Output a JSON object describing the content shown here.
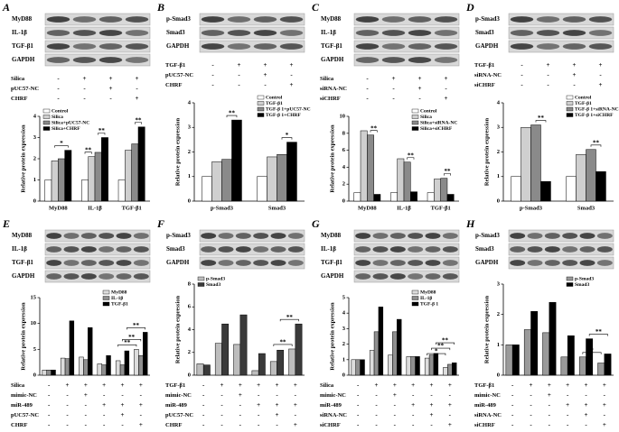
{
  "chart_data": [
    {
      "type": "bar",
      "panel": "A",
      "blot_labels": [
        "MyD88",
        "IL-1β",
        "TGF-β1",
        "GAPDH"
      ],
      "treatments": [
        {
          "name": "Silica",
          "marks": [
            "-",
            "+",
            "+",
            "+"
          ]
        },
        {
          "name": "pUC57-NC",
          "marks": [
            "-",
            "-",
            "+",
            "-"
          ]
        },
        {
          "name": "CHRF",
          "marks": [
            "-",
            "-",
            "-",
            "+"
          ]
        }
      ],
      "ylabel": "Relative protein expression",
      "categories": [
        "MyD88",
        "IL-1β",
        "TGF-β1"
      ],
      "series": [
        {
          "name": "Control",
          "color": "#ffffff",
          "values": [
            1,
            1,
            1
          ]
        },
        {
          "name": "Silica",
          "color": "#cfcfcf",
          "values": [
            1.9,
            2.1,
            2.4
          ]
        },
        {
          "name": "Silica+pUC57-NC",
          "color": "#8a8a8a",
          "values": [
            2.0,
            2.3,
            2.7
          ]
        },
        {
          "name": "Silica+CHRF",
          "color": "#000000",
          "values": [
            2.4,
            3.0,
            3.5
          ]
        }
      ],
      "ylim": [
        0,
        4
      ],
      "yticks": [
        0,
        1,
        2,
        3,
        4
      ],
      "legend": "upper left",
      "annotations": [
        {
          "text": "*",
          "a": [
            0,
            1
          ],
          "b": [
            0,
            3
          ]
        },
        {
          "text": "**",
          "a": [
            1,
            0
          ],
          "b": [
            1,
            1
          ]
        },
        {
          "text": "**",
          "a": [
            1,
            2
          ],
          "b": [
            1,
            3
          ]
        },
        {
          "text": "**",
          "a": [
            2,
            2
          ],
          "b": [
            2,
            3
          ]
        }
      ]
    },
    {
      "type": "bar",
      "panel": "B",
      "blot_labels": [
        "p-Smad3",
        "Smad3",
        "GAPDH"
      ],
      "treatments": [
        {
          "name": "TGF-β1",
          "marks": [
            "-",
            "+",
            "+",
            "+"
          ]
        },
        {
          "name": "pUC57-NC",
          "marks": [
            "-",
            "-",
            "+",
            "-"
          ]
        },
        {
          "name": "CHRF",
          "marks": [
            "-",
            "-",
            "-",
            "+"
          ]
        }
      ],
      "ylabel": "Relative protein expression",
      "categories": [
        "p-Smad3",
        "Smad3"
      ],
      "series": [
        {
          "name": "Control",
          "color": "#ffffff",
          "values": [
            1,
            1
          ]
        },
        {
          "name": "TGF-β1",
          "color": "#cfcfcf",
          "values": [
            1.6,
            1.8
          ]
        },
        {
          "name": "TGF-β 1+pUC57-NC",
          "color": "#8a8a8a",
          "values": [
            1.7,
            1.9
          ]
        },
        {
          "name": "TGF-β 1+CHRF",
          "color": "#000000",
          "values": [
            3.3,
            2.4
          ]
        }
      ],
      "ylim": [
        0,
        4
      ],
      "yticks": [
        0,
        1,
        2,
        3,
        4
      ],
      "legend": "upper right",
      "annotations": [
        {
          "text": "**",
          "a": [
            0,
            2
          ],
          "b": [
            0,
            3
          ]
        },
        {
          "text": "*",
          "a": [
            1,
            2
          ],
          "b": [
            1,
            3
          ]
        }
      ]
    },
    {
      "type": "bar",
      "panel": "C",
      "blot_labels": [
        "MyD88",
        "IL-1β",
        "TGF-β1",
        "GAPDH"
      ],
      "treatments": [
        {
          "name": "Silica",
          "marks": [
            "-",
            "+",
            "+",
            "+"
          ]
        },
        {
          "name": "siRNA-NC",
          "marks": [
            "-",
            "-",
            "+",
            "-"
          ]
        },
        {
          "name": "siCHRF",
          "marks": [
            "-",
            "-",
            "-",
            "+"
          ]
        }
      ],
      "ylabel": "Relative protein expression",
      "categories": [
        "MyD88",
        "IL-1β",
        "TGF-β1"
      ],
      "series": [
        {
          "name": "Control",
          "color": "#ffffff",
          "values": [
            1,
            1,
            1
          ]
        },
        {
          "name": "Silica",
          "color": "#cfcfcf",
          "values": [
            8.3,
            5.0,
            2.6
          ]
        },
        {
          "name": "Silica+siRNA-NC",
          "color": "#8a8a8a",
          "values": [
            7.8,
            4.6,
            2.7
          ]
        },
        {
          "name": "Silica+siCHRF",
          "color": "#000000",
          "values": [
            0.8,
            1.1,
            0.8
          ]
        }
      ],
      "ylim": [
        0,
        10
      ],
      "yticks": [
        0,
        2,
        4,
        6,
        8,
        10
      ],
      "legend": "upper right",
      "annotations": [
        {
          "text": "**",
          "a": [
            0,
            2
          ],
          "b": [
            0,
            3
          ]
        },
        {
          "text": "**",
          "a": [
            1,
            2
          ],
          "b": [
            1,
            3
          ]
        },
        {
          "text": "**",
          "a": [
            2,
            2
          ],
          "b": [
            2,
            3
          ]
        }
      ]
    },
    {
      "type": "bar",
      "panel": "D",
      "blot_labels": [
        "p-Smad3",
        "Smad3",
        "GAPDH"
      ],
      "treatments": [
        {
          "name": "TGF-β1",
          "marks": [
            "-",
            "+",
            "+",
            "+"
          ]
        },
        {
          "name": "siRNA-NC",
          "marks": [
            "-",
            "-",
            "+",
            "-"
          ]
        },
        {
          "name": "siCHRF",
          "marks": [
            "-",
            "-",
            "-",
            "+"
          ]
        }
      ],
      "ylabel": "Relative protein expression",
      "categories": [
        "p-Smad3",
        "Smad3"
      ],
      "series": [
        {
          "name": "Control",
          "color": "#ffffff",
          "values": [
            1,
            1
          ]
        },
        {
          "name": "TGF-β1",
          "color": "#cfcfcf",
          "values": [
            3.0,
            1.9
          ]
        },
        {
          "name": "TGF-β 1+siRNA-NC",
          "color": "#8a8a8a",
          "values": [
            3.1,
            2.1
          ]
        },
        {
          "name": "TGF-β 1+siCHRF",
          "color": "#000000",
          "values": [
            0.8,
            1.2
          ]
        }
      ],
      "ylim": [
        0,
        4
      ],
      "yticks": [
        0,
        1,
        2,
        3,
        4
      ],
      "legend": "upper right",
      "annotations": [
        {
          "text": "**",
          "a": [
            0,
            2
          ],
          "b": [
            0,
            3
          ]
        },
        {
          "text": "**",
          "a": [
            1,
            2
          ],
          "b": [
            1,
            3
          ]
        }
      ]
    },
    {
      "type": "bar",
      "panel": "E",
      "blot_labels": [
        "MyD88",
        "IL-1β",
        "TGF-β1",
        "GAPDH"
      ],
      "treatments": [
        {
          "name": "Silica",
          "marks": [
            "-",
            "+",
            "+",
            "+",
            "+",
            "+"
          ]
        },
        {
          "name": "mimic-NC",
          "marks": [
            "-",
            "-",
            "+",
            "-",
            "-",
            "-"
          ]
        },
        {
          "name": "miR-489",
          "marks": [
            "-",
            "-",
            "-",
            "+",
            "+",
            "+"
          ]
        },
        {
          "name": "pUC57-NC",
          "marks": [
            "-",
            "-",
            "-",
            "-",
            "+",
            "-"
          ]
        },
        {
          "name": "CHRF",
          "marks": [
            "-",
            "-",
            "-",
            "-",
            "-",
            "+"
          ]
        }
      ],
      "ylabel": "Relative protein expression",
      "categories": [
        null,
        null,
        null,
        null,
        null,
        null
      ],
      "series": [
        {
          "name": "MyD88",
          "color": "#dddddd",
          "values": [
            1,
            3.3,
            3.5,
            2.2,
            2.8,
            5.0
          ]
        },
        {
          "name": "IL-1β",
          "color": "#8f8f8f",
          "values": [
            1,
            3.2,
            3.0,
            2.0,
            2.0,
            3.8
          ]
        },
        {
          "name": "TGF-β1",
          "color": "#000000",
          "values": [
            1,
            10.5,
            9.2,
            3.8,
            4.7,
            8.3
          ]
        }
      ],
      "ylim": [
        0,
        15
      ],
      "yticks": [
        0,
        5,
        10,
        15
      ],
      "legend": "upper right",
      "annotations": [
        {
          "text": "**",
          "a": [
            4,
            0
          ],
          "b": [
            5,
            0
          ]
        },
        {
          "text": "**",
          "a": [
            4,
            1
          ],
          "b": [
            5,
            1
          ]
        },
        {
          "text": "**",
          "a": [
            4,
            2
          ],
          "b": [
            5,
            2
          ]
        }
      ]
    },
    {
      "type": "bar",
      "panel": "F",
      "blot_labels": [
        "p-Smad3",
        "Smad3",
        "GAPDH"
      ],
      "treatments": [
        {
          "name": "TGF-β1",
          "marks": [
            "-",
            "+",
            "+",
            "+",
            "+",
            "+"
          ]
        },
        {
          "name": "mimic-NC",
          "marks": [
            "-",
            "-",
            "+",
            "-",
            "-",
            "-"
          ]
        },
        {
          "name": "miR-489",
          "marks": [
            "-",
            "-",
            "-",
            "+",
            "+",
            "+"
          ]
        },
        {
          "name": "pUC57-NC",
          "marks": [
            "-",
            "-",
            "-",
            "-",
            "+",
            "-"
          ]
        },
        {
          "name": "CHRF",
          "marks": [
            "-",
            "-",
            "-",
            "-",
            "-",
            "+"
          ]
        }
      ],
      "ylabel": "Relative protein expression",
      "categories": [
        null,
        null,
        null,
        null,
        null,
        null
      ],
      "series": [
        {
          "name": "p-Smad3",
          "color": "#bdbdbd",
          "values": [
            1,
            2.8,
            2.7,
            0.4,
            1.2,
            2.3
          ]
        },
        {
          "name": "Smad3",
          "color": "#3a3a3a",
          "values": [
            0.9,
            4.5,
            5.3,
            1.9,
            2.2,
            4.5
          ]
        }
      ],
      "ylim": [
        0,
        8
      ],
      "yticks": [
        0,
        2,
        4,
        6,
        8
      ],
      "legend": "upper left",
      "annotations": [
        {
          "text": "**",
          "a": [
            4,
            0
          ],
          "b": [
            5,
            0
          ]
        },
        {
          "text": "**",
          "a": [
            4,
            1
          ],
          "b": [
            5,
            1
          ]
        }
      ]
    },
    {
      "type": "bar",
      "panel": "G",
      "blot_labels": [
        "MyD88",
        "IL-1β",
        "TGF-β1",
        "GAPDH"
      ],
      "treatments": [
        {
          "name": "Silica",
          "marks": [
            "-",
            "+",
            "+",
            "+",
            "+",
            "+"
          ]
        },
        {
          "name": "mimic-NC",
          "marks": [
            "-",
            "-",
            "+",
            "-",
            "-",
            "-"
          ]
        },
        {
          "name": "miR-489",
          "marks": [
            "-",
            "-",
            "-",
            "+",
            "+",
            "+"
          ]
        },
        {
          "name": "siRNA-NC",
          "marks": [
            "-",
            "-",
            "-",
            "-",
            "+",
            "-"
          ]
        },
        {
          "name": "siCHRF",
          "marks": [
            "-",
            "-",
            "-",
            "-",
            "-",
            "+"
          ]
        }
      ],
      "ylabel": "Relative protein expression",
      "categories": [
        null,
        null,
        null,
        null,
        null,
        null
      ],
      "series": [
        {
          "name": "MyD88",
          "color": "#dddddd",
          "values": [
            1,
            1.6,
            1.3,
            1.2,
            1.1,
            0.5
          ]
        },
        {
          "name": "IL-1β",
          "color": "#8f8f8f",
          "values": [
            1,
            2.8,
            2.8,
            1.2,
            1.3,
            0.7
          ]
        },
        {
          "name": "TGF-β 1",
          "color": "#000000",
          "values": [
            1,
            4.4,
            3.6,
            1.2,
            1.4,
            0.8
          ]
        }
      ],
      "ylim": [
        0,
        5
      ],
      "yticks": [
        0,
        1,
        2,
        3,
        4,
        5
      ],
      "legend": "upper right",
      "annotations": [
        {
          "text": "*",
          "a": [
            4,
            0
          ],
          "b": [
            5,
            0
          ]
        },
        {
          "text": "**",
          "a": [
            4,
            1
          ],
          "b": [
            5,
            1
          ]
        },
        {
          "text": "**",
          "a": [
            4,
            2
          ],
          "b": [
            5,
            2
          ]
        }
      ]
    },
    {
      "type": "bar",
      "panel": "H",
      "blot_labels": [
        "p-Smad3",
        "Smad3",
        "GAPDH"
      ],
      "treatments": [
        {
          "name": "TGF-β1",
          "marks": [
            "-",
            "+",
            "+",
            "+",
            "+",
            "+"
          ]
        },
        {
          "name": "mimic-NC",
          "marks": [
            "-",
            "-",
            "+",
            "-",
            "-",
            "-"
          ]
        },
        {
          "name": "miR-489",
          "marks": [
            "-",
            "-",
            "-",
            "+",
            "+",
            "+"
          ]
        },
        {
          "name": "siRNA-NC",
          "marks": [
            "-",
            "-",
            "-",
            "-",
            "+",
            "-"
          ]
        },
        {
          "name": "siCHRF",
          "marks": [
            "-",
            "-",
            "-",
            "-",
            "-",
            "+"
          ]
        }
      ],
      "ylabel": "Relative protein expression",
      "categories": [
        null,
        null,
        null,
        null,
        null,
        null
      ],
      "series": [
        {
          "name": "p-Smad3",
          "color": "#9a9a9a",
          "values": [
            1,
            1.5,
            1.4,
            0.6,
            0.6,
            0.4
          ]
        },
        {
          "name": "Smad3",
          "color": "#000000",
          "values": [
            1,
            2.1,
            2.4,
            1.3,
            1.2,
            0.7
          ]
        }
      ],
      "ylim": [
        0,
        3
      ],
      "yticks": [
        0,
        1,
        2,
        3
      ],
      "legend": "upper right",
      "annotations": [
        {
          "text": "*",
          "a": [
            4,
            0
          ],
          "b": [
            5,
            0
          ]
        },
        {
          "text": "**",
          "a": [
            4,
            1
          ],
          "b": [
            5,
            1
          ]
        }
      ]
    }
  ]
}
